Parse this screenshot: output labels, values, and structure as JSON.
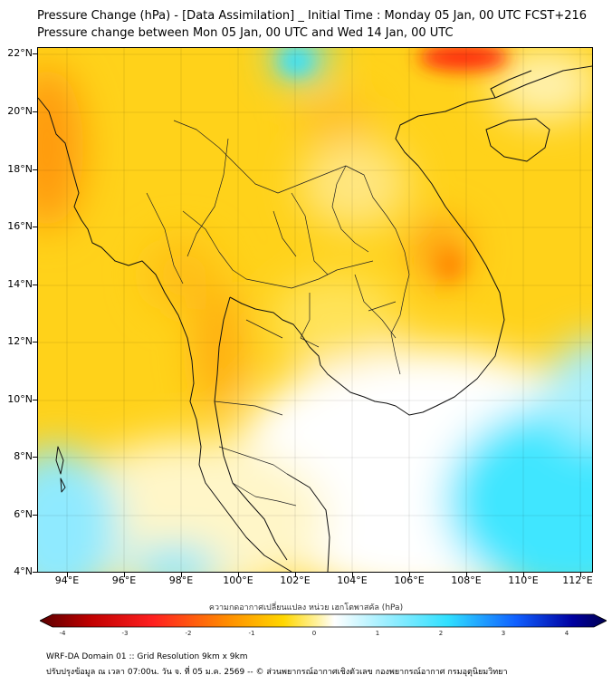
{
  "title_line1": "Pressure Change (hPa) - [Data Assimilation] _ Initial Time : Monday 05 Jan, 00 UTC FCST+216",
  "title_line2": "Pressure change between Mon 05 Jan, 00 UTC and Wed 14 Jan, 00 UTC",
  "map": {
    "lat_labels": [
      "22°N",
      "20°N",
      "18°N",
      "16°N",
      "14°N",
      "12°N",
      "10°N",
      "8°N",
      "6°N",
      "4°N"
    ],
    "lon_labels": [
      "94°E",
      "96°E",
      "98°E",
      "100°E",
      "102°E",
      "104°E",
      "106°E",
      "108°E",
      "110°E",
      "112°E"
    ],
    "lat_range": [
      4,
      22.2
    ],
    "lon_range": [
      93,
      112.4
    ]
  },
  "colorbar": {
    "label": "ความกดอากาศเปลี่ยนแปลง หน่วย เฮกโตพาสคัล (hPa)",
    "ticks": [
      "-4",
      "-3",
      "-2",
      "-1",
      "0",
      "1",
      "2",
      "3",
      "4"
    ],
    "range": [
      -4,
      4
    ],
    "colors": [
      "#5a0000",
      "#c00000",
      "#ff2020",
      "#ff8c00",
      "#ffd700",
      "#ffee80",
      "#ffffff",
      "#a8f0ff",
      "#30e0ff",
      "#1060ff",
      "#0000a0",
      "#000050"
    ]
  },
  "footer": {
    "line1": "WRF-DA Domain 01 :: Grid Resolution 9km x 9km",
    "line2": "ปรับปรุงข้อมูล ณ เวลา 07:00น. วัน จ. ที่ 05 ม.ค. 2569 -- © ส่วนพยากรณ์อากาศเชิงตัวเลข กองพยากรณ์อากาศ กรมอุตุนิยมวิทยา"
  }
}
